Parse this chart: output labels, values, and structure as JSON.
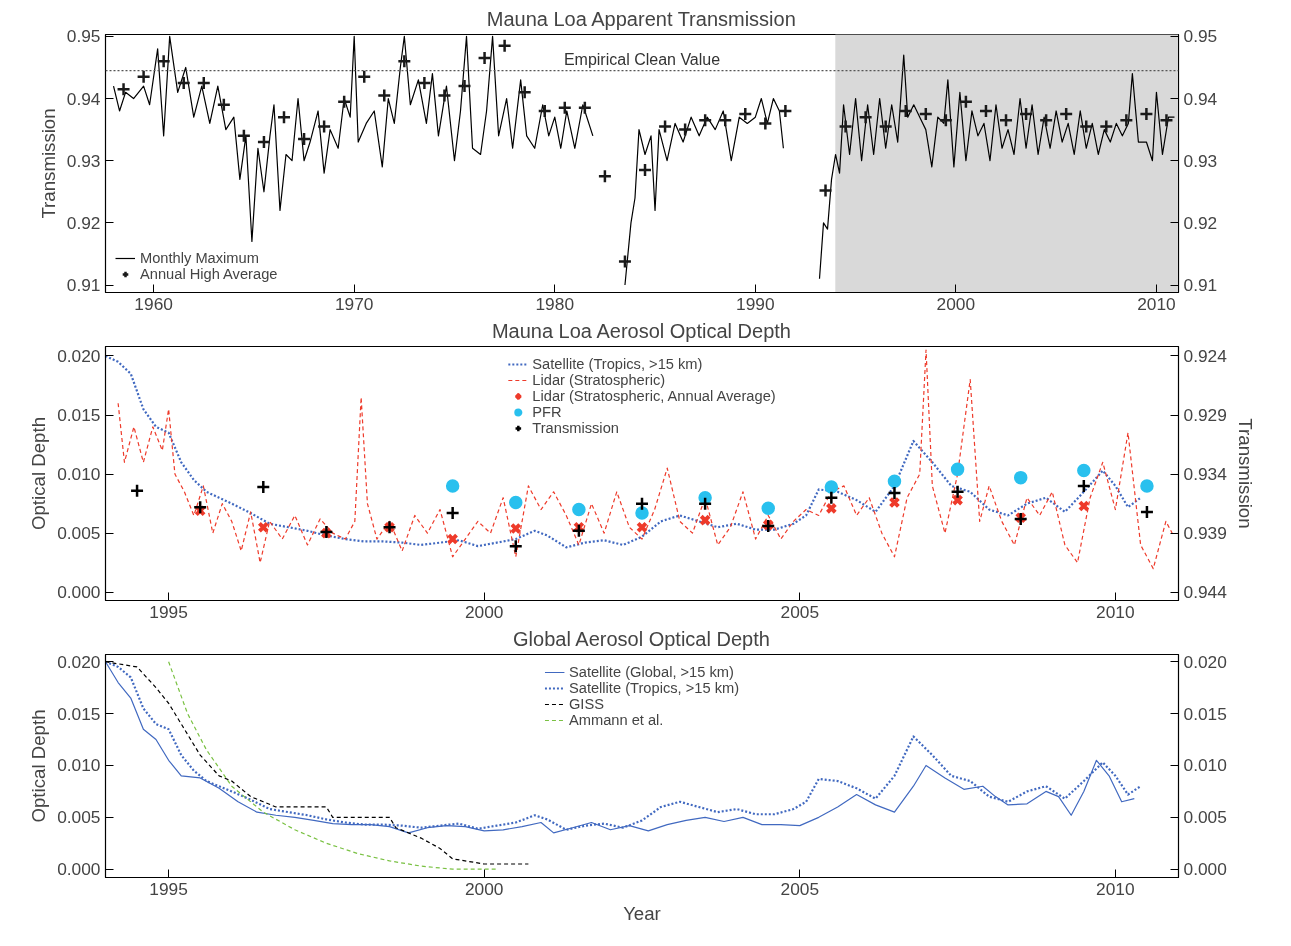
{
  "chart_data": [
    {
      "type": "line",
      "title": "Mauna Loa Apparent Transmission",
      "ylabel": "Transmission",
      "xlim": [
        1957.6,
        2011.1
      ],
      "ylim": [
        0.9088,
        0.9503
      ],
      "xticks": [
        1960,
        1970,
        1980,
        1990,
        2000,
        2010
      ],
      "yticks": [
        0.91,
        0.92,
        0.93,
        0.94,
        0.95
      ],
      "y2lim": [
        0.9088,
        0.9503
      ],
      "y2ticks": [
        0.91,
        0.92,
        0.93,
        0.94,
        0.95
      ],
      "grid": false,
      "legend": "bottom left",
      "bands": [
        {
          "axis": "x",
          "from": 1994,
          "to": 2011.1,
          "color": "#d9d9d9"
        }
      ],
      "ref_lines": [
        {
          "axis": "y",
          "value": 0.9445,
          "label": "Empirical Clean Value",
          "line_style": "dotted",
          "color": "#555555"
        }
      ],
      "series": [
        {
          "name": "Monthly Maximum",
          "color": "#000000",
          "line_style": "solid",
          "x": [
            1958.0,
            1958.3,
            1958.6,
            1959.0,
            1959.5,
            1959.8,
            1960.2,
            1960.5,
            1960.8,
            1961.2,
            1961.6,
            1962.0,
            1962.4,
            1962.8,
            1963.2,
            1963.6,
            1964.0,
            1964.3,
            1964.6,
            1964.9,
            1965.2,
            1965.5,
            1965.8,
            1966.0,
            1966.3,
            1966.6,
            1966.9,
            1967.2,
            1967.5,
            1967.8,
            1968.2,
            1968.5,
            1968.8,
            1969.2,
            1969.5,
            1969.8,
            1970.0,
            1970.2,
            1970.6,
            1971.0,
            1971.4,
            1971.7,
            1972.0,
            1972.3,
            1972.5,
            1972.8,
            1973.2,
            1973.6,
            1973.9,
            1974.2,
            1974.6,
            1975.0,
            1975.3,
            1975.6,
            1975.9,
            1976.3,
            1976.6,
            1976.9,
            1977.2,
            1977.6,
            1977.9,
            1978.3,
            1978.6,
            1979.0,
            1979.4,
            1979.7,
            1980.0,
            1980.3,
            1980.6,
            1981.0,
            1981.4,
            1981.9,
            1982.0,
            1983.5,
            1983.8,
            1984.0,
            1984.2,
            1984.5,
            1984.8,
            1985.0,
            1985.2,
            1985.6,
            1986.0,
            1986.4,
            1986.8,
            1987.2,
            1987.6,
            1988.0,
            1988.4,
            1988.8,
            1989.2,
            1989.6,
            1990.0,
            1990.3,
            1990.6,
            1990.9,
            1991.2,
            1991.4,
            1992.0,
            1993.2,
            1993.4,
            1993.6,
            1993.8,
            1994.0,
            1994.2,
            1994.4,
            1994.7,
            1995.0,
            1995.3,
            1995.6,
            1995.9,
            1996.2,
            1996.5,
            1996.8,
            1997.1,
            1997.4,
            1997.6,
            1997.9,
            1998.2,
            1998.5,
            1998.8,
            1999.1,
            1999.4,
            1999.6,
            1999.9,
            2000.2,
            2000.5,
            2000.8,
            2001.1,
            2001.4,
            2001.7,
            2002.0,
            2002.3,
            2002.6,
            2002.9,
            2003.2,
            2003.5,
            2003.8,
            2004.1,
            2004.4,
            2004.7,
            2005.0,
            2005.3,
            2005.6,
            2005.9,
            2006.2,
            2006.5,
            2006.8,
            2007.1,
            2007.4,
            2007.7,
            2008.0,
            2008.3,
            2008.6,
            2008.8,
            2009.1,
            2009.5,
            2009.8,
            2010.0,
            2010.3,
            2010.6,
            2010.9
          ],
          "values": [
            0.942,
            0.938,
            0.941,
            0.94,
            0.942,
            0.939,
            0.948,
            0.934,
            0.95,
            0.941,
            0.945,
            0.937,
            0.942,
            0.936,
            0.942,
            0.935,
            0.937,
            0.927,
            0.934,
            0.917,
            0.932,
            0.925,
            0.934,
            0.939,
            0.922,
            0.931,
            0.93,
            0.94,
            0.93,
            0.933,
            0.938,
            0.928,
            0.935,
            0.932,
            0.94,
            0.937,
            0.95,
            0.933,
            0.936,
            0.938,
            0.929,
            0.94,
            0.936,
            0.945,
            0.95,
            0.939,
            0.943,
            0.936,
            0.944,
            0.934,
            0.942,
            0.93,
            0.938,
            0.95,
            0.932,
            0.931,
            0.938,
            0.95,
            0.934,
            0.94,
            0.932,
            0.943,
            0.934,
            0.932,
            0.939,
            0.934,
            0.937,
            0.932,
            0.938,
            0.932,
            0.939,
            0.934,
            null,
            0.91,
            0.92,
            0.924,
            0.935,
            0.931,
            0.934,
            0.922,
            0.935,
            0.93,
            0.936,
            0.933,
            0.937,
            0.934,
            0.937,
            0.935,
            0.938,
            0.93,
            0.937,
            0.936,
            0.937,
            0.94,
            0.936,
            0.94,
            0.938,
            0.932,
            null,
            0.911,
            0.92,
            0.919,
            0.927,
            0.931,
            0.928,
            0.939,
            0.931,
            0.94,
            0.93,
            0.939,
            0.931,
            0.94,
            0.932,
            0.939,
            0.933,
            0.947,
            0.937,
            0.939,
            0.937,
            0.935,
            0.929,
            0.937,
            0.936,
            0.943,
            0.929,
            0.941,
            0.93,
            0.938,
            0.934,
            0.936,
            0.93,
            0.939,
            0.932,
            0.935,
            0.931,
            0.94,
            0.932,
            0.939,
            0.931,
            0.937,
            0.932,
            0.938,
            0.933,
            0.936,
            0.931,
            0.938,
            0.932,
            0.936,
            0.931,
            0.935,
            0.933,
            0.936,
            0.934,
            0.936,
            0.944,
            0.933,
            0.933,
            0.93,
            0.941,
            0.931,
            0.937,
            0.937
          ]
        },
        {
          "name": "Annual High Average",
          "type": "scatter",
          "marker": "cross",
          "color": "#1a1a1a",
          "x": [
            1958.5,
            1959.5,
            1960.5,
            1961.5,
            1962.5,
            1963.5,
            1964.5,
            1965.5,
            1966.5,
            1967.5,
            1968.5,
            1969.5,
            1970.5,
            1971.5,
            1972.5,
            1973.5,
            1974.5,
            1975.5,
            1976.5,
            1977.5,
            1978.5,
            1979.5,
            1980.5,
            1981.5,
            1982.5,
            1983.5,
            1984.5,
            1985.5,
            1986.5,
            1987.5,
            1988.5,
            1989.5,
            1990.5,
            1991.5,
            1993.5,
            1994.5,
            1995.5,
            1996.5,
            1997.5,
            1998.5,
            1999.5,
            2000.5,
            2001.5,
            2002.5,
            2003.5,
            2004.5,
            2005.5,
            2006.5,
            2007.5,
            2008.5,
            2009.5,
            2010.5
          ],
          "values": [
            0.9415,
            0.9435,
            0.946,
            0.9425,
            0.9425,
            0.939,
            0.934,
            0.933,
            0.937,
            0.9335,
            0.9355,
            0.9395,
            0.9435,
            0.9405,
            0.946,
            0.9425,
            0.9405,
            0.942,
            0.9465,
            0.9485,
            0.941,
            0.938,
            0.9385,
            0.9385,
            0.9275,
            0.9138,
            0.9285,
            0.9355,
            0.935,
            0.9365,
            0.9365,
            0.9375,
            0.936,
            0.938,
            0.9252,
            0.9355,
            0.937,
            0.9355,
            0.938,
            0.9375,
            0.9365,
            0.9395,
            0.938,
            0.9365,
            0.9375,
            0.9365,
            0.9375,
            0.9355,
            0.9355,
            0.9365,
            0.9375,
            0.9365
          ]
        }
      ]
    },
    {
      "type": "line",
      "title": "Mauna Loa Aerosol Optical Depth",
      "ylabel": "Optical Depth",
      "y2label": "Transmission",
      "xlim": [
        1994,
        2011
      ],
      "ylim": [
        -0.0007,
        0.0208
      ],
      "xticks": [
        1995,
        2000,
        2005,
        2010
      ],
      "yticks": [
        {
          "value": 0,
          "label": "0.000"
        },
        0.005,
        {
          "value": 0.01,
          "label": "0.010"
        },
        0.015,
        {
          "value": 0.02,
          "label": "0.020"
        }
      ],
      "y2lim": [
        0.9447,
        0.9232
      ],
      "y2ticks": [
        0.924,
        0.929,
        0.934,
        0.939,
        0.944
      ],
      "grid": false,
      "legend": "top",
      "series": [
        {
          "name": "Satellite (Tropics, >15 km)",
          "line_style": "dotted",
          "color": "#4169c0",
          "x": [
            1994.0,
            1994.2,
            1994.4,
            1994.6,
            1994.8,
            1995.0,
            1995.2,
            1995.4,
            1995.6,
            1995.8,
            1996.0,
            1996.3,
            1996.6,
            1996.9,
            1997.2,
            1997.5,
            1997.8,
            1998.1,
            1998.4,
            1998.7,
            1999.0,
            1999.3,
            1999.6,
            1999.9,
            2000.2,
            2000.5,
            2000.8,
            2001.0,
            2001.3,
            2001.6,
            2001.9,
            2002.2,
            2002.5,
            2002.8,
            2003.1,
            2003.4,
            2003.7,
            2004.0,
            2004.3,
            2004.6,
            2004.9,
            2005.1,
            2005.3,
            2005.6,
            2005.9,
            2006.2,
            2006.5,
            2006.8,
            2007.1,
            2007.4,
            2007.7,
            2008.0,
            2008.3,
            2008.6,
            2008.9,
            2009.2,
            2009.5,
            2009.8,
            2010.0,
            2010.2,
            2010.4
          ],
          "values": [
            0.02,
            0.0195,
            0.0185,
            0.0155,
            0.014,
            0.0135,
            0.011,
            0.0095,
            0.0085,
            0.008,
            0.0075,
            0.0067,
            0.0058,
            0.0055,
            0.0052,
            0.0048,
            0.0045,
            0.0043,
            0.0043,
            0.0042,
            0.004,
            0.0042,
            0.0044,
            0.0039,
            0.0042,
            0.0045,
            0.0052,
            0.0048,
            0.0038,
            0.0042,
            0.0044,
            0.004,
            0.0047,
            0.006,
            0.0065,
            0.006,
            0.0055,
            0.0058,
            0.0053,
            0.0053,
            0.0058,
            0.0065,
            0.0087,
            0.0085,
            0.0078,
            0.0068,
            0.009,
            0.0128,
            0.011,
            0.009,
            0.0085,
            0.007,
            0.0065,
            0.0075,
            0.008,
            0.0068,
            0.0085,
            0.0103,
            0.009,
            0.0072,
            0.008
          ]
        },
        {
          "name": "Lidar (Stratospheric)",
          "line_style": "dashed",
          "color": "#ee3a2a",
          "x": [
            1994.2,
            1994.3,
            1994.45,
            1994.6,
            1994.75,
            1994.9,
            1995.0,
            1995.1,
            1995.25,
            1995.4,
            1995.55,
            1995.7,
            1995.85,
            1996.0,
            1996.15,
            1996.3,
            1996.45,
            1996.6,
            1996.8,
            1997.0,
            1997.2,
            1997.4,
            1997.6,
            1997.8,
            1997.95,
            1998.05,
            1998.15,
            1998.3,
            1998.5,
            1998.7,
            1998.9,
            1999.1,
            1999.3,
            1999.5,
            1999.7,
            1999.9,
            2000.1,
            2000.3,
            2000.5,
            2000.7,
            2000.9,
            2001.1,
            2001.3,
            2001.5,
            2001.7,
            2001.9,
            2002.1,
            2002.3,
            2002.5,
            2002.7,
            2002.9,
            2003.1,
            2003.3,
            2003.5,
            2003.7,
            2003.9,
            2004.1,
            2004.3,
            2004.5,
            2004.7,
            2004.9,
            2005.1,
            2005.3,
            2005.5,
            2005.7,
            2005.9,
            2006.1,
            2006.3,
            2006.5,
            2006.7,
            2006.9,
            2007.0,
            2007.1,
            2007.3,
            2007.5,
            2007.7,
            2007.85,
            2008.0,
            2008.2,
            2008.4,
            2008.6,
            2008.8,
            2009.0,
            2009.2,
            2009.4,
            2009.6,
            2009.8,
            2010.0,
            2010.2,
            2010.4,
            2010.6,
            2010.8,
            2010.9
          ],
          "values": [
            0.016,
            0.011,
            0.014,
            0.011,
            0.014,
            0.012,
            0.0155,
            0.01,
            0.0085,
            0.0065,
            0.009,
            0.005,
            0.0075,
            0.006,
            0.0035,
            0.0068,
            0.0025,
            0.006,
            0.0045,
            0.0065,
            0.004,
            0.0062,
            0.005,
            0.0045,
            0.006,
            0.0165,
            0.0075,
            0.0045,
            0.006,
            0.0035,
            0.0065,
            0.005,
            0.007,
            0.003,
            0.0045,
            0.006,
            0.005,
            0.008,
            0.003,
            0.009,
            0.007,
            0.0085,
            0.0065,
            0.004,
            0.0075,
            0.005,
            0.0085,
            0.0055,
            0.0045,
            0.007,
            0.0105,
            0.006,
            0.005,
            0.008,
            0.004,
            0.0055,
            0.0085,
            0.0045,
            0.0065,
            0.0045,
            0.006,
            0.007,
            0.0065,
            0.0085,
            0.009,
            0.0065,
            0.008,
            0.005,
            0.003,
            0.008,
            0.01,
            0.0205,
            0.009,
            0.005,
            0.01,
            0.018,
            0.006,
            0.009,
            0.006,
            0.004,
            0.008,
            0.0065,
            0.0085,
            0.004,
            0.0025,
            0.008,
            0.011,
            0.007,
            0.0135,
            0.004,
            0.002,
            0.006,
            0.005
          ]
        },
        {
          "name": "Lidar (Stratospheric, Annual Average)",
          "type": "scatter",
          "marker": "x",
          "color": "#ee3a2a",
          "x": [
            1995.5,
            1996.5,
            1997.5,
            1998.5,
            1999.5,
            2000.5,
            2001.5,
            2002.5,
            2003.5,
            2004.5,
            2005.5,
            2006.5,
            2007.5,
            2008.5,
            2009.5
          ],
          "values": [
            0.0069,
            0.0055,
            0.005,
            0.0055,
            0.0045,
            0.0054,
            0.0055,
            0.0055,
            0.0061,
            0.0057,
            0.0071,
            0.0076,
            0.0078,
            0.0063,
            0.0073
          ]
        },
        {
          "name": "PFR",
          "type": "scatter",
          "marker": "circle",
          "color": "#29c0ee",
          "x": [
            1999.5,
            2000.5,
            2001.5,
            2002.5,
            2003.5,
            2004.5,
            2005.5,
            2006.5,
            2007.5,
            2008.5,
            2009.5,
            2010.5
          ],
          "values": [
            0.009,
            0.0076,
            0.007,
            0.0067,
            0.008,
            0.0071,
            0.0089,
            0.0094,
            0.0104,
            0.0097,
            0.0103,
            0.009
          ]
        },
        {
          "name": "Transmission",
          "type": "scatter",
          "marker": "cross",
          "color": "#000000",
          "axis": "y2",
          "x": [
            1994.5,
            1995.5,
            1996.5,
            1997.5,
            1998.5,
            1999.5,
            2000.5,
            2001.5,
            2002.5,
            2003.5,
            2004.5,
            2005.5,
            2006.5,
            2007.5,
            2008.5,
            2009.5,
            2010.5
          ],
          "values": [
            0.9354,
            0.9368,
            0.9351,
            0.9389,
            0.9385,
            0.9373,
            0.9401,
            0.9388,
            0.9365,
            0.9365,
            0.9384,
            0.936,
            0.9356,
            0.9355,
            0.9378,
            0.935,
            0.9372
          ]
        }
      ]
    },
    {
      "type": "line",
      "title": "Global Aerosol Optical Depth",
      "xlabel": "Year",
      "ylabel": "Optical Depth",
      "xlim": [
        1994,
        2011
      ],
      "ylim": [
        -0.0008,
        0.0207
      ],
      "xticks": [
        1995,
        2000,
        2005,
        2010
      ],
      "yticks": [
        {
          "value": 0,
          "label": "0.000"
        },
        0.005,
        {
          "value": 0.01,
          "label": "0.010"
        },
        0.015,
        {
          "value": 0.02,
          "label": "0.020"
        }
      ],
      "y2lim": [
        -0.0008,
        0.0207
      ],
      "y2ticks": [
        {
          "value": 0,
          "label": "0.000"
        },
        0.005,
        {
          "value": 0.01,
          "label": "0.010"
        },
        0.015,
        {
          "value": 0.02,
          "label": "0.020"
        }
      ],
      "grid": false,
      "legend": "top",
      "series": [
        {
          "name": "Satellite (Global, >15 km)",
          "line_style": "solid",
          "color": "#4169c0",
          "x": [
            1994.0,
            1994.2,
            1994.4,
            1994.6,
            1994.8,
            1995.0,
            1995.2,
            1995.5,
            1995.8,
            1996.1,
            1996.4,
            1996.7,
            1997.0,
            1997.3,
            1997.6,
            1997.9,
            1998.2,
            1998.5,
            1998.8,
            1999.1,
            1999.4,
            1999.7,
            2000.0,
            2000.3,
            2000.6,
            2000.9,
            2001.1,
            2001.4,
            2001.7,
            2002.0,
            2002.3,
            2002.6,
            2002.9,
            2003.2,
            2003.5,
            2003.8,
            2004.1,
            2004.4,
            2004.7,
            2005.0,
            2005.3,
            2005.6,
            2005.9,
            2006.2,
            2006.5,
            2006.8,
            2007.0,
            2007.3,
            2007.6,
            2007.9,
            2008.1,
            2008.3,
            2008.6,
            2008.9,
            2009.1,
            2009.3,
            2009.5,
            2009.7,
            2009.9,
            2010.1,
            2010.3
          ],
          "values": [
            0.02,
            0.018,
            0.0165,
            0.0135,
            0.0125,
            0.0105,
            0.009,
            0.0088,
            0.0078,
            0.0065,
            0.0055,
            0.0052,
            0.005,
            0.0047,
            0.0044,
            0.0043,
            0.0043,
            0.0041,
            0.0035,
            0.004,
            0.0042,
            0.0041,
            0.0037,
            0.0038,
            0.0041,
            0.0045,
            0.0035,
            0.004,
            0.0045,
            0.0038,
            0.0042,
            0.0037,
            0.0043,
            0.0047,
            0.005,
            0.0046,
            0.005,
            0.0043,
            0.0043,
            0.0042,
            0.005,
            0.006,
            0.0072,
            0.0062,
            0.0055,
            0.008,
            0.01,
            0.0088,
            0.0077,
            0.008,
            0.007,
            0.0062,
            0.0063,
            0.0075,
            0.007,
            0.0052,
            0.0075,
            0.0105,
            0.009,
            0.0065,
            0.0068
          ]
        },
        {
          "name": "Satellite (Tropics, >15 km)",
          "line_style": "dotted",
          "color": "#4169c0",
          "x": [
            1994.0,
            1994.2,
            1994.4,
            1994.6,
            1994.8,
            1995.0,
            1995.2,
            1995.4,
            1995.6,
            1995.8,
            1996.0,
            1996.3,
            1996.6,
            1996.9,
            1997.2,
            1997.5,
            1997.8,
            1998.1,
            1998.4,
            1998.7,
            1999.0,
            1999.3,
            1999.6,
            1999.9,
            2000.2,
            2000.5,
            2000.8,
            2001.0,
            2001.3,
            2001.6,
            2001.9,
            2002.2,
            2002.5,
            2002.8,
            2003.1,
            2003.4,
            2003.7,
            2004.0,
            2004.3,
            2004.6,
            2004.9,
            2005.1,
            2005.3,
            2005.6,
            2005.9,
            2006.2,
            2006.5,
            2006.8,
            2007.1,
            2007.4,
            2007.7,
            2008.0,
            2008.3,
            2008.6,
            2008.9,
            2009.2,
            2009.5,
            2009.8,
            2010.0,
            2010.2,
            2010.4
          ],
          "values": [
            0.02,
            0.0195,
            0.0185,
            0.0155,
            0.014,
            0.0135,
            0.011,
            0.0095,
            0.0085,
            0.008,
            0.0075,
            0.0067,
            0.0058,
            0.0055,
            0.0052,
            0.0048,
            0.0045,
            0.0043,
            0.0043,
            0.0042,
            0.004,
            0.0042,
            0.0044,
            0.0039,
            0.0042,
            0.0045,
            0.0052,
            0.0048,
            0.0038,
            0.0042,
            0.0044,
            0.004,
            0.0047,
            0.006,
            0.0065,
            0.006,
            0.0055,
            0.0058,
            0.0053,
            0.0053,
            0.0058,
            0.0065,
            0.0087,
            0.0085,
            0.0078,
            0.0068,
            0.009,
            0.0128,
            0.011,
            0.009,
            0.0085,
            0.007,
            0.0065,
            0.0075,
            0.008,
            0.0068,
            0.0085,
            0.0103,
            0.009,
            0.0072,
            0.008
          ]
        },
        {
          "name": "GISS",
          "line_style": "dashed",
          "color": "#000000",
          "x": [
            1994.0,
            1994.5,
            1994.8,
            1995.0,
            1995.3,
            1995.5,
            1995.8,
            1996.0,
            1996.3,
            1996.5,
            1996.7,
            1997.5,
            1997.6,
            1998.5,
            1998.6,
            1999.0,
            1999.3,
            1999.5,
            2000.0,
            2000.7
          ],
          "values": [
            0.02,
            0.0195,
            0.0175,
            0.016,
            0.013,
            0.011,
            0.009,
            0.0085,
            0.007,
            0.0065,
            0.006,
            0.006,
            0.005,
            0.005,
            0.004,
            0.003,
            0.002,
            0.001,
            0.0005,
            0.0005
          ]
        },
        {
          "name": "Ammann et al.",
          "line_style": "dashed",
          "color": "#7ac143",
          "x": [
            1995.0,
            1995.3,
            1995.6,
            1996.0,
            1996.5,
            1997.0,
            1997.5,
            1998.0,
            1998.5,
            1999.0,
            1999.5,
            2000.2
          ],
          "values": [
            0.02,
            0.015,
            0.0115,
            0.008,
            0.0055,
            0.0038,
            0.0025,
            0.0015,
            0.0008,
            0.0003,
            0.0,
            0.0
          ]
        }
      ]
    }
  ]
}
